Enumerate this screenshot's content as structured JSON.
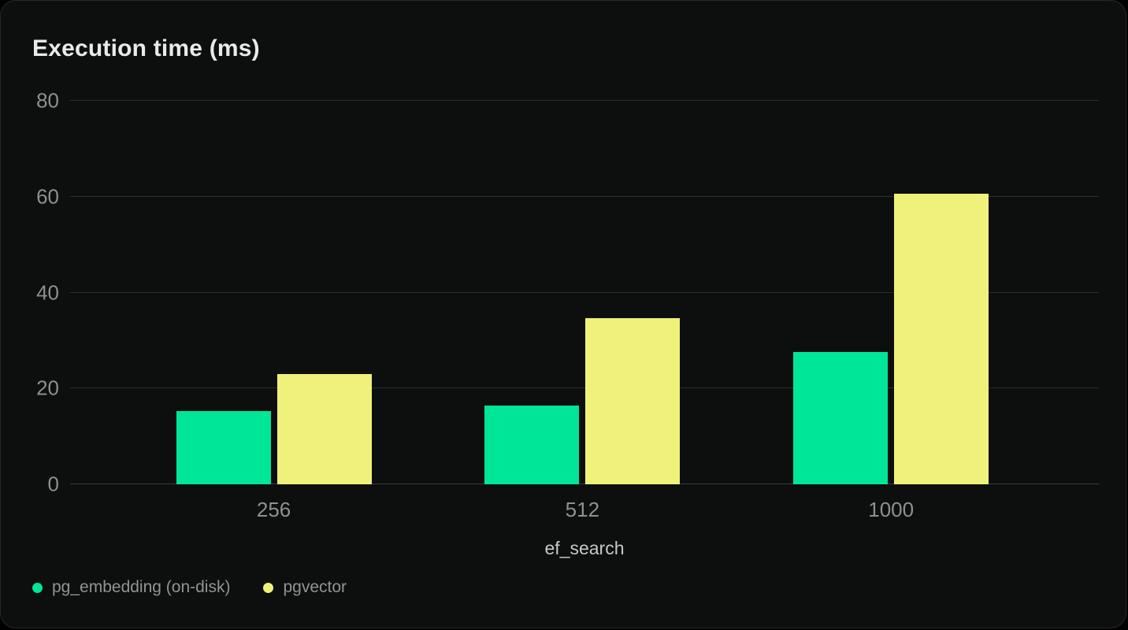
{
  "chart_data": {
    "type": "bar",
    "title": "Execution time (ms)",
    "xlabel": "ef_search",
    "ylabel": "",
    "categories": [
      "256",
      "512",
      "1000"
    ],
    "series": [
      {
        "name": "pg_embedding (on-disk)",
        "color": "#00e699",
        "values": [
          15.2,
          16.5,
          27.6
        ]
      },
      {
        "name": "pgvector",
        "color": "#f0f17a",
        "values": [
          23.0,
          34.6,
          60.6
        ]
      }
    ],
    "ylim": [
      0,
      80
    ],
    "yticks": [
      0,
      20,
      40,
      60,
      80
    ],
    "grid": true,
    "legend_position": "bottom-left",
    "colors": {
      "card_background": "#0d0f0e",
      "page_background": "#000000",
      "gridline": "#2d2f2e",
      "axis_baseline": "#3a3c3b",
      "title_text": "#e9eaea",
      "tick_text": "#8b9090",
      "axis_label_text": "#c7c9c8",
      "legend_text": "#909493"
    }
  }
}
